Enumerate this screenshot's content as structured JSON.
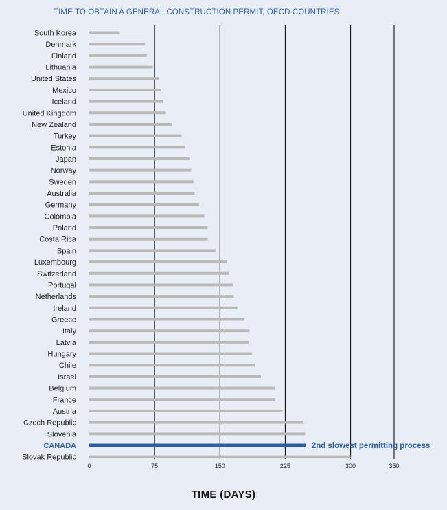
{
  "chart_data": {
    "type": "bar",
    "orientation": "horizontal",
    "title": "TIME TO OBTAIN A GENERAL CONSTRUCTION PERMIT, OECD COUNTRIES",
    "xlabel": "TIME (DAYS)",
    "ylabel": "",
    "xlim": [
      0,
      350
    ],
    "xticks": [
      0,
      75,
      150,
      225,
      300,
      350
    ],
    "grid": "vertical",
    "categories": [
      "South Korea",
      "Denmark",
      "Finland",
      "Lithuania",
      "United States",
      "Mexico",
      "Iceland",
      "United Kingdom",
      "New Zealand",
      "Turkey",
      "Estonia",
      "Japan",
      "Norway",
      "Sweden",
      "Australia",
      "Germany",
      "Colombia",
      "Poland",
      "Costa Rica",
      "Spain",
      "Luxembourg",
      "Switzerland",
      "Portugal",
      "Netherlands",
      "Ireland",
      "Greece",
      "Italy",
      "Latvia",
      "Hungary",
      "Chile",
      "Israel",
      "Belgium",
      "France",
      "Austria",
      "Czech Republic",
      "Slovenia",
      "CANADA",
      "Slovak Republic"
    ],
    "values": [
      35,
      64,
      66,
      73,
      80,
      82,
      85,
      88,
      95,
      106,
      110,
      115,
      117,
      120,
      121,
      126,
      132,
      136,
      136,
      145,
      158,
      160,
      165,
      166,
      170,
      178,
      184,
      183,
      187,
      190,
      197,
      213,
      213,
      222,
      246,
      248,
      249,
      300
    ],
    "highlight": {
      "category": "CANADA",
      "color": "#2b5ea3"
    },
    "bar_color": "#b9b9b9",
    "annotations": [
      {
        "category": "CANADA",
        "text": "2nd slowest permitting process"
      }
    ]
  }
}
